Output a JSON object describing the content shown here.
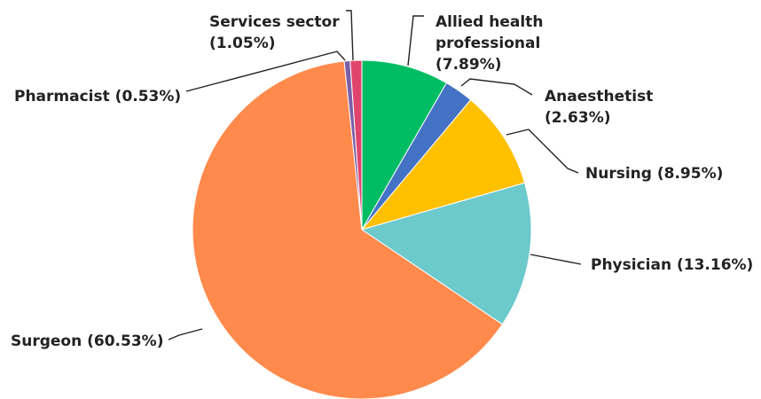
{
  "chart_data": {
    "type": "pie",
    "title": "",
    "slices": [
      {
        "category": "Allied health professional",
        "value": 7.89,
        "color": "#00BD63",
        "label_lines": [
          "Allied health",
          "professional",
          "(7.89%)"
        ]
      },
      {
        "category": "Anaesthetist",
        "value": 2.63,
        "color": "#4472C4",
        "label_lines": [
          "Anaesthetist",
          "(2.63%)"
        ]
      },
      {
        "category": "Nursing",
        "value": 8.95,
        "color": "#FFC000",
        "label_lines": [
          "Nursing (8.95%)"
        ]
      },
      {
        "category": "Physician",
        "value": 13.16,
        "color": "#6CC9CC",
        "label_lines": [
          "Physician (13.16%)"
        ]
      },
      {
        "category": "Surgeon",
        "value": 60.53,
        "color": "#FF8A4C",
        "label_lines": [
          "Surgeon (60.53%)"
        ]
      },
      {
        "category": "Pharmacist",
        "value": 0.53,
        "color": "#7B5EA7",
        "label_lines": [
          "Pharmacist (0.53%)"
        ]
      },
      {
        "category": "Services sector",
        "value": 1.05,
        "color": "#E0446C",
        "label_lines": [
          "Services sector",
          "(1.05%)"
        ]
      }
    ]
  }
}
